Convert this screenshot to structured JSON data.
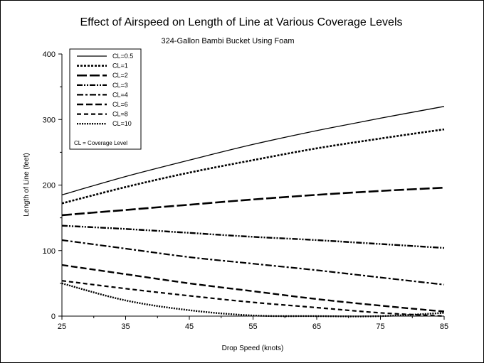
{
  "chart_data": {
    "type": "line",
    "title": "Effect of Airspeed on Length of Line at Various Coverage Levels",
    "subtitle": "324-Gallon Bambi Bucket Using Foam",
    "xlabel": "Drop Speed (knots)",
    "ylabel": "Length of Line (feet)",
    "xlim": [
      25,
      85
    ],
    "ylim": [
      0,
      400
    ],
    "x_ticks": [
      25,
      35,
      45,
      55,
      65,
      75,
      85
    ],
    "y_ticks": [
      0,
      100,
      200,
      300,
      400
    ],
    "grid": false,
    "legend_position": "top-left",
    "legend_note": "CL = Coverage Level",
    "x": [
      25,
      35,
      45,
      55,
      65,
      75,
      85
    ],
    "series": [
      {
        "name": "CL=0.5",
        "dash": "solid",
        "width": 1.3,
        "values": [
          185,
          213,
          238,
          262,
          283,
          302,
          320
        ]
      },
      {
        "name": "CL=1",
        "dash": "dot",
        "width": 2.6,
        "values": [
          172,
          197,
          219,
          238,
          256,
          271,
          285
        ]
      },
      {
        "name": "CL=2",
        "dash": "longdash",
        "width": 2.6,
        "values": [
          154,
          162,
          170,
          178,
          185,
          191,
          196
        ]
      },
      {
        "name": "CL=3",
        "dash": "dashdotdot",
        "width": 2.4,
        "values": [
          138,
          133,
          127,
          121,
          116,
          110,
          104
        ]
      },
      {
        "name": "CL=4",
        "dash": "dashdot",
        "width": 2.2,
        "values": [
          116,
          103,
          90,
          80,
          70,
          59,
          48
        ]
      },
      {
        "name": "CL=6",
        "dash": "medium",
        "width": 2.4,
        "values": [
          78,
          64,
          50,
          38,
          26,
          16,
          7
        ]
      },
      {
        "name": "CL=8",
        "dash": "shortdash",
        "width": 2.2,
        "values": [
          54,
          42,
          31,
          21,
          13,
          5,
          0
        ]
      },
      {
        "name": "CL=10",
        "dash": "finedot",
        "width": 2.4,
        "values": [
          50,
          24,
          9,
          1,
          0,
          0,
          5
        ]
      }
    ]
  }
}
